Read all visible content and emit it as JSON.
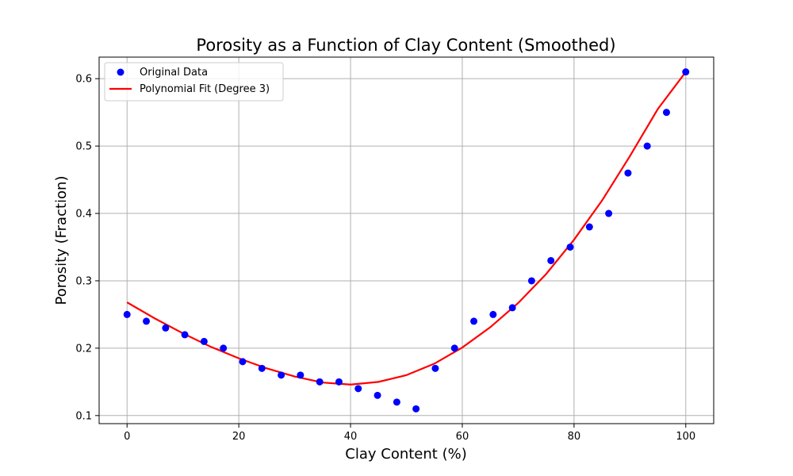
{
  "chart_data": {
    "type": "scatter",
    "title": "Porosity as a Function of Clay Content (Smoothed)",
    "xlabel": "Clay Content (%)",
    "ylabel": "Porosity (Fraction)",
    "xlim": [
      -5,
      105
    ],
    "ylim": [
      0.088,
      0.632
    ],
    "xticks": [
      0,
      20,
      40,
      60,
      80,
      100
    ],
    "yticks": [
      0.1,
      0.2,
      0.3,
      0.4,
      0.5,
      0.6
    ],
    "xtick_labels": [
      "0",
      "20",
      "40",
      "60",
      "80",
      "100"
    ],
    "ytick_labels": [
      "0.1",
      "0.2",
      "0.3",
      "0.4",
      "0.5",
      "0.6"
    ],
    "grid": true,
    "legend_position": "top-left",
    "series": [
      {
        "name": "Original Data",
        "kind": "scatter",
        "color": "#0000ff",
        "x": [
          0,
          3.45,
          6.9,
          10.34,
          13.79,
          17.24,
          20.69,
          24.14,
          27.59,
          31.03,
          34.48,
          37.93,
          41.38,
          44.83,
          48.28,
          51.72,
          55.17,
          58.62,
          62.07,
          65.52,
          68.97,
          72.41,
          75.86,
          79.31,
          82.76,
          86.21,
          89.66,
          93.1,
          96.55,
          100
        ],
        "y": [
          0.25,
          0.24,
          0.23,
          0.22,
          0.21,
          0.2,
          0.18,
          0.17,
          0.16,
          0.16,
          0.15,
          0.15,
          0.14,
          0.13,
          0.12,
          0.11,
          0.17,
          0.2,
          0.24,
          0.25,
          0.26,
          0.3,
          0.33,
          0.35,
          0.38,
          0.4,
          0.46,
          0.5,
          0.55,
          0.61
        ]
      },
      {
        "name": "Polynomial Fit (Degree 3)",
        "kind": "line",
        "color": "#ff0000",
        "x": [
          0,
          5,
          10,
          15,
          20,
          25,
          30,
          35,
          40,
          45,
          50,
          55,
          60,
          65,
          70,
          75,
          80,
          85,
          90,
          95,
          100
        ],
        "y": [
          0.268,
          0.244,
          0.222,
          0.202,
          0.185,
          0.17,
          0.158,
          0.149,
          0.146,
          0.15,
          0.16,
          0.177,
          0.201,
          0.231,
          0.267,
          0.31,
          0.361,
          0.419,
          0.485,
          0.555,
          0.61
        ]
      }
    ]
  }
}
